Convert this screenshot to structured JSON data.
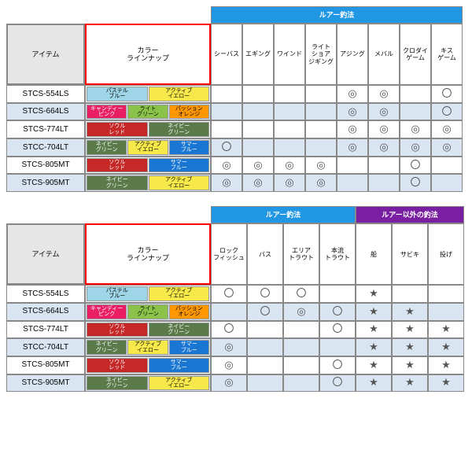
{
  "labels": {
    "item": "アイテム",
    "lineup": "カラー\nラインナップ",
    "group_lure": "ルアー釣法",
    "group_other": "ルアー以外の釣法"
  },
  "colors": {
    "group_lure_bg": "#2196e3",
    "group_other_bg": "#7b1fa2",
    "alt_row_bg": "#d9e6f2",
    "item_hdr_bg": "#e6e6e6",
    "red_border": "#ff0000",
    "tags": {
      "pastel_blue": {
        "label": "パステル\nブルー",
        "bg": "#9ed6e8"
      },
      "active_yellow": {
        "label": "アクティブ\nイエロー",
        "bg": "#f7e94a"
      },
      "candy_pink": {
        "label": "キャンディー\nピンク",
        "bg": "#e91e63"
      },
      "light_green": {
        "label": "ライト\nグリーン",
        "bg": "#8bc34a"
      },
      "passion_orange": {
        "label": "パッション\nオレンジ",
        "bg": "#ff9800"
      },
      "soul_red": {
        "label": "ソウル\nレッド",
        "bg": "#c62828"
      },
      "navy_green": {
        "label": "ネイビー\nグリーン",
        "bg": "#5a7a4a"
      },
      "summer_blue": {
        "label": "サマー\nブルー",
        "bg": "#1976d2"
      }
    }
  },
  "marks": {
    "circle": "〇",
    "double": "◎",
    "star": "★"
  },
  "table1": {
    "cols": [
      "シーバス",
      "エギング",
      "ワインド",
      "ライト\nショア\nジギング",
      "アジング",
      "メバル",
      "クロダイ\nゲーム",
      "キス\nゲーム"
    ],
    "rows": [
      {
        "item": "STCS-554LS",
        "alt": false,
        "tags": [
          "pastel_blue",
          "active_yellow"
        ],
        "vals": [
          "",
          "",
          "",
          "",
          "double",
          "double",
          "",
          "circle"
        ]
      },
      {
        "item": "STCS-664LS",
        "alt": true,
        "tags": [
          "candy_pink",
          "light_green",
          "passion_orange"
        ],
        "vals": [
          "",
          "",
          "",
          "",
          "double",
          "double",
          "",
          "circle"
        ]
      },
      {
        "item": "STCS-774LT",
        "alt": false,
        "tags": [
          "soul_red",
          "navy_green"
        ],
        "vals": [
          "",
          "",
          "",
          "",
          "double",
          "double",
          "double",
          "double"
        ]
      },
      {
        "item": "STCC-704LT",
        "alt": true,
        "tags": [
          "navy_green",
          "active_yellow",
          "summer_blue"
        ],
        "vals": [
          "circle",
          "",
          "",
          "",
          "double",
          "double",
          "double",
          "double"
        ]
      },
      {
        "item": "STCS-805MT",
        "alt": false,
        "tags": [
          "soul_red",
          "summer_blue"
        ],
        "vals": [
          "double",
          "double",
          "double",
          "double",
          "",
          "",
          "circle",
          ""
        ]
      },
      {
        "item": "STCS-905MT",
        "alt": true,
        "tags": [
          "navy_green",
          "active_yellow"
        ],
        "vals": [
          "double",
          "double",
          "double",
          "double",
          "",
          "",
          "circle",
          ""
        ]
      }
    ]
  },
  "table2": {
    "groups": [
      {
        "label_key": "group_lure",
        "span": 4,
        "bg_key": "group_lure_bg"
      },
      {
        "label_key": "group_other",
        "span": 3,
        "bg_key": "group_other_bg"
      }
    ],
    "cols": [
      "ロック\nフィッシュ",
      "バス",
      "エリア\nトラウト",
      "本流\nトラウト",
      "船",
      "サビキ",
      "投げ"
    ],
    "rows": [
      {
        "item": "STCS-554LS",
        "alt": false,
        "tags": [
          "pastel_blue",
          "active_yellow"
        ],
        "vals": [
          "circle",
          "circle",
          "circle",
          "",
          "star",
          "",
          ""
        ]
      },
      {
        "item": "STCS-664LS",
        "alt": true,
        "tags": [
          "candy_pink",
          "light_green",
          "passion_orange"
        ],
        "vals": [
          "",
          "circle",
          "double",
          "circle",
          "star",
          "star",
          ""
        ]
      },
      {
        "item": "STCS-774LT",
        "alt": false,
        "tags": [
          "soul_red",
          "navy_green"
        ],
        "vals": [
          "circle",
          "",
          "",
          "circle",
          "star",
          "star",
          "star"
        ]
      },
      {
        "item": "STCC-704LT",
        "alt": true,
        "tags": [
          "navy_green",
          "active_yellow",
          "summer_blue"
        ],
        "vals": [
          "double",
          "",
          "",
          "",
          "star",
          "star",
          "star"
        ]
      },
      {
        "item": "STCS-805MT",
        "alt": false,
        "tags": [
          "soul_red",
          "summer_blue"
        ],
        "vals": [
          "double",
          "",
          "",
          "circle",
          "star",
          "star",
          "star"
        ]
      },
      {
        "item": "STCS-905MT",
        "alt": true,
        "tags": [
          "navy_green",
          "active_yellow"
        ],
        "vals": [
          "double",
          "",
          "",
          "circle",
          "star",
          "star",
          "star"
        ]
      }
    ]
  }
}
